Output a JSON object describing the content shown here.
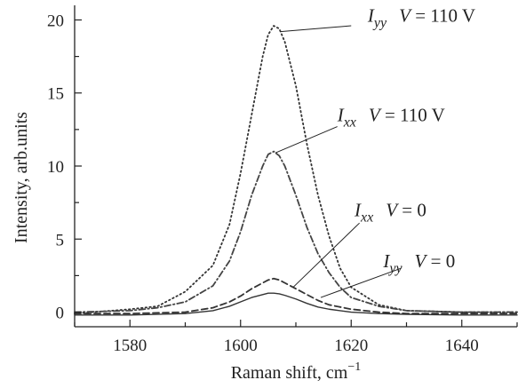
{
  "chart_data": {
    "type": "line",
    "xlabel": "Raman shift, cm",
    "xlabel_sup": "−1",
    "ylabel": "Intensity, arb.units",
    "xlim": [
      1570,
      1650
    ],
    "ylim": [
      -1,
      21
    ],
    "x_ticks": [
      1580,
      1600,
      1620,
      1640
    ],
    "y_ticks": [
      0,
      5,
      10,
      15,
      20
    ],
    "grid": false,
    "series": [
      {
        "label_main": "I",
        "label_sub": "yy",
        "label_cond": "V = 110 V",
        "style": "dotted",
        "color": "#333333",
        "x": [
          1570,
          1580,
          1585,
          1590,
          1595,
          1598,
          1600,
          1602,
          1604,
          1605,
          1606,
          1607,
          1608,
          1610,
          1612,
          1614,
          1616,
          1618,
          1620,
          1625,
          1630,
          1640,
          1650
        ],
        "y": [
          -0.1,
          0.2,
          0.4,
          1.4,
          3.2,
          6.0,
          9.5,
          13.5,
          17.5,
          19.0,
          19.6,
          19.4,
          18.5,
          15.5,
          11.5,
          8.0,
          5.2,
          3.0,
          1.7,
          0.5,
          0.1,
          0.0,
          0.0
        ]
      },
      {
        "label_main": "I",
        "label_sub": "xx",
        "label_cond": "V = 110 V",
        "style": "dashdot",
        "color": "#444444",
        "x": [
          1570,
          1580,
          1585,
          1590,
          1595,
          1598,
          1600,
          1602,
          1604,
          1605,
          1606,
          1607,
          1608,
          1610,
          1612,
          1614,
          1616,
          1618,
          1620,
          1625,
          1630,
          1640,
          1650
        ],
        "y": [
          0.0,
          0.1,
          0.3,
          0.7,
          1.8,
          3.5,
          5.5,
          8.0,
          10.0,
          10.8,
          11.0,
          10.7,
          10.0,
          8.0,
          5.8,
          4.0,
          2.7,
          1.7,
          1.0,
          0.4,
          0.1,
          0.0,
          0.0
        ]
      },
      {
        "label_main": "I",
        "label_sub": "xx",
        "label_cond": "V = 0",
        "style": "dashed",
        "color": "#333333",
        "x": [
          1570,
          1580,
          1590,
          1595,
          1598,
          1600,
          1602,
          1604,
          1605,
          1606,
          1607,
          1608,
          1610,
          1612,
          1614,
          1616,
          1620,
          1625,
          1630,
          1640,
          1650
        ],
        "y": [
          -0.1,
          -0.1,
          0.0,
          0.3,
          0.7,
          1.1,
          1.6,
          2.0,
          2.2,
          2.3,
          2.2,
          2.0,
          1.6,
          1.2,
          0.8,
          0.5,
          0.2,
          0.0,
          -0.1,
          -0.1,
          -0.1
        ]
      },
      {
        "label_main": "I",
        "label_sub": "yy",
        "label_cond": "V = 0",
        "style": "solid",
        "color": "#333333",
        "x": [
          1570,
          1580,
          1590,
          1595,
          1598,
          1600,
          1602,
          1604,
          1605,
          1606,
          1607,
          1608,
          1610,
          1612,
          1614,
          1616,
          1620,
          1625,
          1630,
          1640,
          1650
        ],
        "y": [
          -0.2,
          -0.2,
          -0.1,
          0.1,
          0.4,
          0.7,
          1.0,
          1.2,
          1.3,
          1.3,
          1.25,
          1.15,
          0.9,
          0.6,
          0.35,
          0.2,
          0.0,
          -0.1,
          -0.15,
          -0.2,
          -0.2
        ]
      }
    ],
    "annotations": [
      {
        "series_index": 0,
        "anchor_x": 1607.2,
        "anchor_y": 19.2,
        "label_x": 1623.0,
        "label_y": 20.3,
        "leader_from_x": 1620.0,
        "leader_from_y": 19.6
      },
      {
        "series_index": 1,
        "anchor_x": 1606.3,
        "anchor_y": 10.9,
        "label_x": 1617.5,
        "label_y": 13.5,
        "leader_from_x": 1617.5,
        "leader_from_y": 12.7
      },
      {
        "series_index": 2,
        "anchor_x": 1609.5,
        "anchor_y": 1.7,
        "label_x": 1620.6,
        "label_y": 7.0,
        "leader_from_x": 1621.5,
        "leader_from_y": 6.1
      },
      {
        "series_index": 3,
        "anchor_x": 1614.5,
        "anchor_y": 1.0,
        "label_x": 1625.8,
        "label_y": 3.5,
        "leader_from_x": 1629.0,
        "leader_from_y": 3.0
      }
    ]
  }
}
